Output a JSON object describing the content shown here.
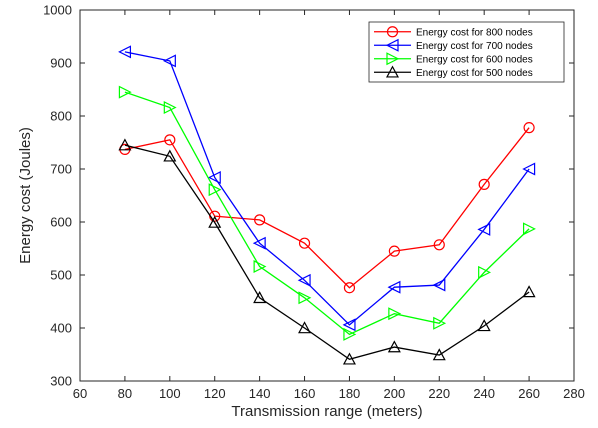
{
  "chart_data": {
    "type": "line",
    "xlabel": "Transmission range (meters)",
    "ylabel": "Energy cost (Joules)",
    "xlim": [
      60,
      280
    ],
    "ylim": [
      300,
      1000
    ],
    "xticks": [
      60,
      80,
      100,
      120,
      140,
      160,
      180,
      200,
      220,
      240,
      260,
      280
    ],
    "yticks": [
      300,
      400,
      500,
      600,
      700,
      800,
      900,
      1000
    ],
    "grid": false,
    "legend_position": "top-right",
    "x": [
      80,
      100,
      120,
      140,
      160,
      180,
      200,
      220,
      240,
      260
    ],
    "series": [
      {
        "name": "Energy cost for 800 nodes",
        "color": "#ff0000",
        "marker": "circle",
        "values": [
          737,
          755,
          611,
          604,
          560,
          476,
          545,
          557,
          671,
          778
        ]
      },
      {
        "name": "Energy cost for 700 nodes",
        "color": "#0000ff",
        "marker": "triangle-left",
        "values": [
          921,
          904,
          684,
          560,
          490,
          406,
          477,
          481,
          586,
          700
        ]
      },
      {
        "name": "Energy cost for 600 nodes",
        "color": "#00ff00",
        "marker": "triangle-right",
        "values": [
          845,
          816,
          661,
          516,
          457,
          388,
          427,
          409,
          505,
          587
        ]
      },
      {
        "name": "Energy cost for 500 nodes",
        "color": "#000000",
        "marker": "triangle-up",
        "values": [
          745,
          724,
          599,
          457,
          400,
          341,
          364,
          349,
          404,
          468
        ]
      }
    ]
  }
}
